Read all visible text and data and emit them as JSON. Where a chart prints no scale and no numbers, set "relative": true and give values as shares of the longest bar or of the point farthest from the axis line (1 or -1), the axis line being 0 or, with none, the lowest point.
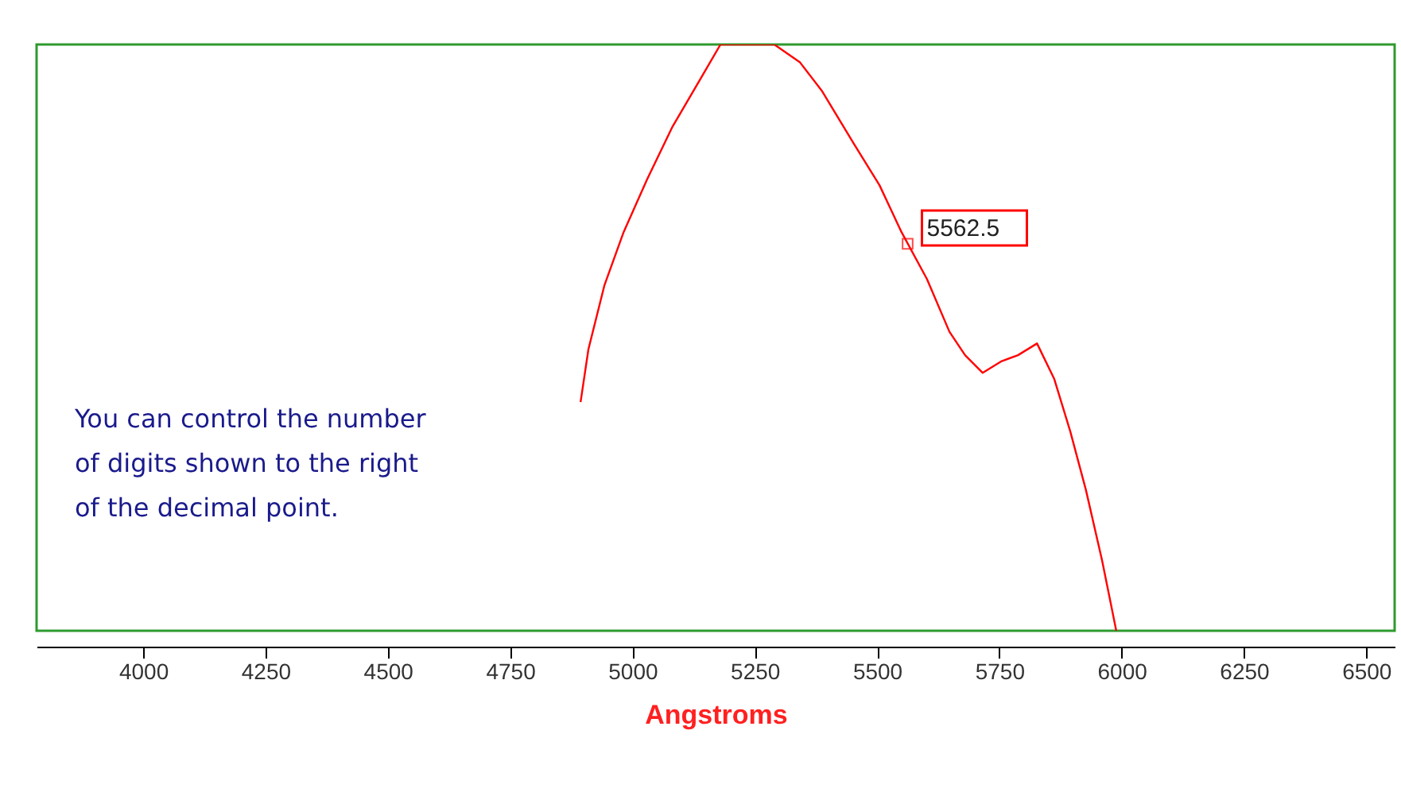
{
  "chart_data": {
    "type": "line",
    "relative": true,
    "xlabel": "Angstroms",
    "xlim": [
      3782,
      6558
    ],
    "xticks": [
      4000,
      4250,
      4500,
      4750,
      5000,
      5250,
      5500,
      5750,
      6000,
      6250,
      6500
    ],
    "grid": false,
    "marker": "none",
    "line_style": "solid",
    "tick_labels": "x",
    "series": [
      {
        "color": "#ff0000",
        "x": [
          4894,
          4910,
          4943,
          4982,
          5030,
          5082,
          5138,
          5180,
          5290,
          5342,
          5388,
          5453,
          5505,
          5550,
          5602,
          5648,
          5680,
          5716,
          5755,
          5788,
          5827,
          5862,
          5895,
          5927,
          5960,
          5989
        ],
        "values": [
          0.39,
          0.48,
          0.59,
          0.68,
          0.77,
          0.86,
          0.94,
          1,
          1,
          0.97,
          0.92,
          0.83,
          0.76,
          0.68,
          0.6,
          0.51,
          0.47,
          0.44,
          0.46,
          0.47,
          0.49,
          0.43,
          0.34,
          0.24,
          0.12,
          0
        ]
      }
    ],
    "annotations": [
      {
        "text": "5562.5",
        "x": 5562.5,
        "y": 0.66
      },
      "You can control the number of digits shown to the right of the decimal point."
    ]
  }
}
